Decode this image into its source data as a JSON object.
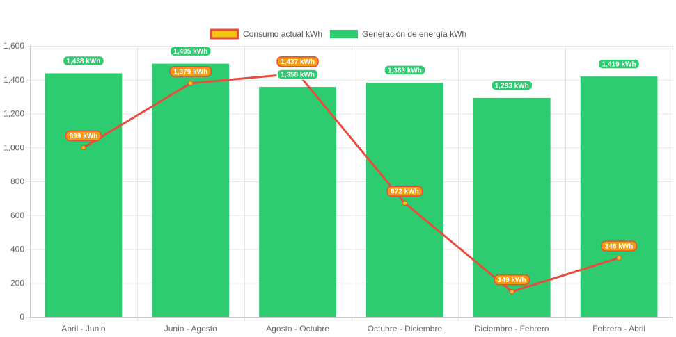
{
  "chart_data": {
    "type": "bar",
    "categories": [
      "Abril - Junio",
      "Junio - Agosto",
      "Agosto - Octubre",
      "Octubre - Diciembre",
      "Diciembre - Febrero",
      "Febrero - Abril"
    ],
    "series": [
      {
        "name": "Consumo actual kWh",
        "type": "line",
        "values": [
          999,
          1379,
          1437,
          672,
          149,
          348
        ],
        "labels": [
          "999 kWh",
          "1,379 kWh",
          "1,437 kWh",
          "672 kWh",
          "149 kWh",
          "348 kWh"
        ],
        "color": "#e74c3c",
        "point_color": "#f1c40f"
      },
      {
        "name": "Generación de energía kWh",
        "type": "bar",
        "values": [
          1438,
          1495,
          1358,
          1383,
          1293,
          1419
        ],
        "labels": [
          "1,438 kWh",
          "1,495 kWh",
          "1,358 kWh",
          "1,383 kWh",
          "1,293 kWh",
          "1,419 kWh"
        ],
        "color": "#2ecc71"
      }
    ],
    "ylim": [
      0,
      1600
    ],
    "yticks": [
      0,
      200,
      400,
      600,
      800,
      1000,
      1200,
      1400,
      1600
    ],
    "ytick_labels": [
      "0",
      "200",
      "400",
      "600",
      "800",
      "1,000",
      "1,200",
      "1,400",
      "1,600"
    ],
    "legend_position": "top",
    "grid": true
  }
}
